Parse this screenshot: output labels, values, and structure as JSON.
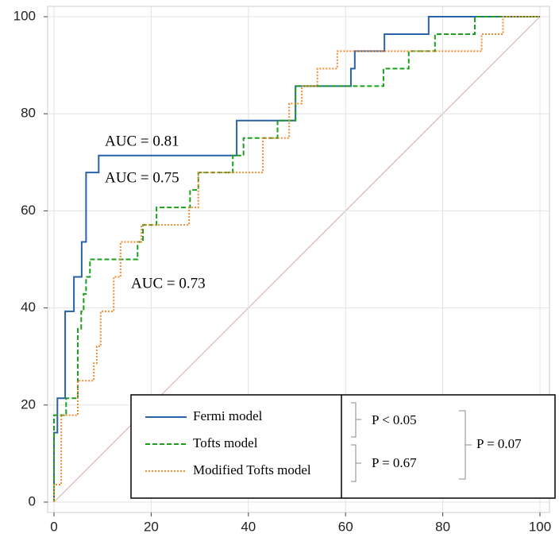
{
  "chart_data": {
    "type": "line",
    "xlim": [
      0,
      100
    ],
    "ylim": [
      0,
      100
    ],
    "xticks": [
      0,
      20,
      40,
      60,
      80,
      100
    ],
    "yticks": [
      0,
      20,
      40,
      60,
      80,
      100
    ],
    "grid": true,
    "series": [
      {
        "name": "Fermi model",
        "color": "#2a62a8",
        "dash": "none",
        "x": [
          0,
          0,
          0.7,
          0.7,
          2.3,
          2.3,
          4.1,
          4.1,
          5.7,
          5.7,
          6.6,
          6.6,
          9.2,
          9.2,
          37.6,
          37.6,
          49.7,
          49.7,
          61.1,
          61.1,
          61.9,
          61.9,
          68,
          68,
          77.1,
          77.1,
          100
        ],
        "values": [
          0,
          14.3,
          14.3,
          21.4,
          21.4,
          39.3,
          39.3,
          46.4,
          46.4,
          53.6,
          53.6,
          67.9,
          67.9,
          71.4,
          71.4,
          78.6,
          78.6,
          85.7,
          85.7,
          89.3,
          89.3,
          92.9,
          92.9,
          96.4,
          96.4,
          100,
          100
        ]
      },
      {
        "name": "Tofts model",
        "color": "#1aa01a",
        "dash": "6 3",
        "x": [
          0,
          0,
          2.5,
          2.5,
          4.9,
          4.9,
          5.6,
          5.6,
          6.1,
          6.1,
          6.6,
          6.6,
          7.4,
          7.4,
          17.2,
          17.2,
          18.3,
          18.3,
          21.1,
          21.1,
          28,
          28,
          29.7,
          29.7,
          36.8,
          36.8,
          39,
          39,
          46,
          46,
          49.7,
          49.7,
          67.8,
          67.8,
          73,
          73,
          78.4,
          78.4,
          86.6,
          86.6,
          100
        ],
        "values": [
          0,
          17.9,
          17.9,
          21.4,
          21.4,
          35.7,
          35.7,
          39.3,
          39.3,
          42.9,
          42.9,
          46.4,
          46.4,
          50,
          50,
          53.6,
          53.6,
          57.1,
          57.1,
          60.7,
          60.7,
          64.3,
          64.3,
          67.9,
          67.9,
          71.4,
          71.4,
          75,
          75,
          78.6,
          78.6,
          85.7,
          85.7,
          89.3,
          89.3,
          92.9,
          92.9,
          96.4,
          96.4,
          100,
          100
        ]
      },
      {
        "name": "Modified Tofts model",
        "color": "#f08a30",
        "dash": "2 2",
        "x": [
          0,
          0,
          1.5,
          1.5,
          4.9,
          4.9,
          8.2,
          8.2,
          8.8,
          8.8,
          9.6,
          9.6,
          12.3,
          12.3,
          13.7,
          13.7,
          18,
          18,
          27.8,
          27.8,
          29.7,
          29.7,
          43,
          43,
          48.4,
          48.4,
          51,
          51,
          54.2,
          54.2,
          58.3,
          58.3,
          88,
          88,
          92.4,
          92.4,
          100
        ],
        "values": [
          0,
          3.6,
          3.6,
          17.9,
          17.9,
          25,
          25,
          28.6,
          28.6,
          32.1,
          32.1,
          39.3,
          39.3,
          46.4,
          46.4,
          53.6,
          53.6,
          57.1,
          57.1,
          60.7,
          60.7,
          67.9,
          67.9,
          75,
          75,
          82.1,
          82.1,
          85.7,
          85.7,
          89.3,
          89.3,
          92.9,
          92.9,
          96.4,
          96.4,
          100,
          100
        ]
      }
    ],
    "annotations": [
      "AUC = 0.81",
      "AUC = 0.75",
      "AUC = 0.73"
    ],
    "p_values": [
      "P < 0.05",
      "P = 0.67",
      "P = 0.07"
    ]
  }
}
